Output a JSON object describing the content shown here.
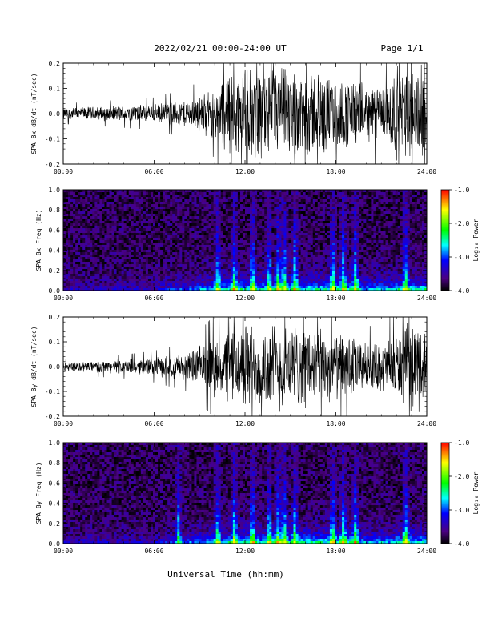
{
  "header": {
    "date_range": "2022/02/21  00:00-24:00 UT",
    "page": "Page 1/1"
  },
  "x_axis": {
    "title": "Universal Time (hh:mm)",
    "ticks": [
      "00:00",
      "06:00",
      "12:00",
      "18:00",
      "24:00"
    ]
  },
  "colorbar": {
    "title": "Log₁₀ Power",
    "ticks": [
      "-1.0",
      "-2.0",
      "-3.0",
      "-4.0"
    ],
    "range": [
      -4.0,
      -1.0
    ],
    "colors": [
      "#000000",
      "#4b0082",
      "#0000ff",
      "#00ffff",
      "#00ff00",
      "#ffff00",
      "#ff0000"
    ]
  },
  "chart_data": [
    {
      "type": "line",
      "id": "bx-waveform",
      "ylabel": "SPA Bx dB/dt (nT/sec)",
      "yticks": [
        "0.2",
        "0.1",
        "0.0",
        "-0.1",
        "-0.2"
      ],
      "ylim": [
        -0.2,
        0.2
      ],
      "xlim": [
        0,
        24
      ],
      "amplitude_envelope": {
        "x_hours": [
          0,
          2,
          4,
          6,
          8,
          9,
          10,
          11,
          12,
          13,
          14,
          15,
          16,
          17,
          18,
          19,
          20,
          21,
          22,
          23,
          24
        ],
        "half_amplitude": [
          0.025,
          0.03,
          0.035,
          0.04,
          0.06,
          0.08,
          0.11,
          0.2,
          0.2,
          0.2,
          0.2,
          0.2,
          0.2,
          0.18,
          0.15,
          0.16,
          0.12,
          0.13,
          0.2,
          0.2,
          0.2
        ]
      }
    },
    {
      "type": "heatmap",
      "id": "bx-spectrogram",
      "ylabel": "SPA Bx Freq (Hz)",
      "yticks": [
        "1.0",
        "0.8",
        "0.6",
        "0.4",
        "0.2",
        "0.0"
      ],
      "ylim": [
        0,
        1
      ],
      "xlim": [
        0,
        24
      ],
      "zlim": [
        -4,
        -1
      ],
      "bright_vertical_bands_hours": [
        10.2,
        11.3,
        12.5,
        13.6,
        14.2,
        14.6,
        15.3,
        17.8,
        18.5,
        19.3,
        22.6
      ],
      "low_frequency_peak_hz": 0.03
    },
    {
      "type": "line",
      "id": "by-waveform",
      "ylabel": "SPA By dB/dt (nT/sec)",
      "yticks": [
        "0.2",
        "0.1",
        "0.0",
        "-0.1",
        "-0.2"
      ],
      "ylim": [
        -0.2,
        0.2
      ],
      "xlim": [
        0,
        24
      ],
      "amplitude_envelope": {
        "x_hours": [
          0,
          2,
          4,
          6,
          8,
          9,
          10,
          11,
          12,
          13,
          14,
          15,
          16,
          17,
          18,
          19,
          20,
          21,
          22,
          23,
          24
        ],
        "half_amplitude": [
          0.02,
          0.025,
          0.03,
          0.04,
          0.06,
          0.09,
          0.13,
          0.17,
          0.2,
          0.18,
          0.2,
          0.2,
          0.19,
          0.16,
          0.15,
          0.15,
          0.1,
          0.11,
          0.14,
          0.2,
          0.18
        ]
      }
    },
    {
      "type": "heatmap",
      "id": "by-spectrogram",
      "ylabel": "SPA By Freq (Hz)",
      "yticks": [
        "1.0",
        "0.8",
        "0.6",
        "0.4",
        "0.2",
        "0.0"
      ],
      "ylim": [
        0,
        1
      ],
      "xlim": [
        0,
        24
      ],
      "zlim": [
        -4,
        -1
      ],
      "bright_vertical_bands_hours": [
        7.6,
        10.2,
        11.3,
        12.5,
        13.6,
        14.2,
        14.6,
        15.3,
        17.8,
        18.5,
        19.3,
        22.6
      ],
      "low_frequency_peak_hz": 0.03
    }
  ]
}
